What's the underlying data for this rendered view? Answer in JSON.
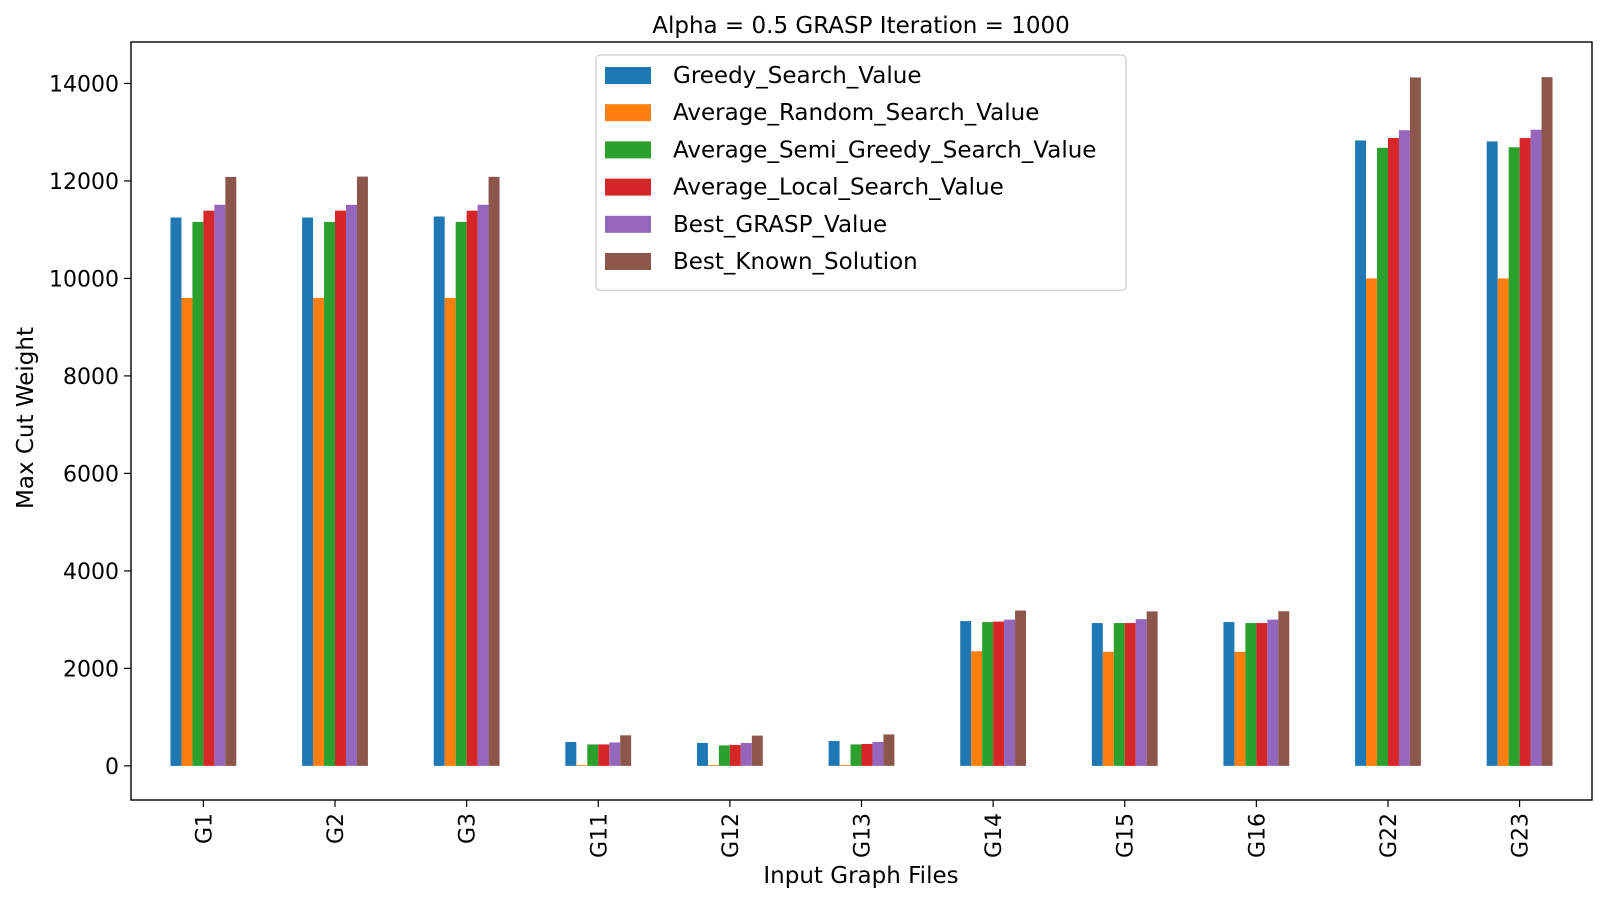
{
  "chart_data": {
    "type": "bar",
    "title": "Alpha = 0.5  GRASP Iteration = 1000",
    "xlabel": "Input Graph Files",
    "ylabel": "Max Cut Weight",
    "ylim": [
      -700,
      14850
    ],
    "yticks": [
      0,
      2000,
      4000,
      6000,
      8000,
      10000,
      12000,
      14000
    ],
    "grid": false,
    "legend_position": "top-center",
    "categories": [
      "G1",
      "G2",
      "G3",
      "G11",
      "G12",
      "G13",
      "G14",
      "G15",
      "G16",
      "G22",
      "G23"
    ],
    "series": [
      {
        "name": "Greedy_Search_Value",
        "color": "#1f77b4",
        "values": [
          11250,
          11250,
          11270,
          490,
          470,
          510,
          2970,
          2930,
          2950,
          12830,
          12810
        ]
      },
      {
        "name": "Average_Random_Search_Value",
        "color": "#ff7f0e",
        "values": [
          9600,
          9600,
          9600,
          15,
          15,
          15,
          2350,
          2340,
          2340,
          10000,
          10000
        ]
      },
      {
        "name": "Average_Semi_Greedy_Search_Value",
        "color": "#2ca02c",
        "values": [
          11160,
          11160,
          11160,
          440,
          420,
          440,
          2950,
          2930,
          2930,
          12680,
          12690
        ]
      },
      {
        "name": "Average_Local_Search_Value",
        "color": "#d62728",
        "values": [
          11390,
          11390,
          11390,
          440,
          430,
          450,
          2960,
          2930,
          2930,
          12880,
          12880
        ]
      },
      {
        "name": "Best_GRASP_Value",
        "color": "#9467bd",
        "values": [
          11510,
          11510,
          11510,
          480,
          470,
          490,
          3000,
          3010,
          3000,
          13040,
          13050
        ]
      },
      {
        "name": "Best_Known_Solution",
        "color": "#8c564b",
        "values": [
          12083,
          12089,
          12084,
          627,
          621,
          645,
          3187,
          3169,
          3172,
          14123,
          14129
        ]
      }
    ]
  }
}
